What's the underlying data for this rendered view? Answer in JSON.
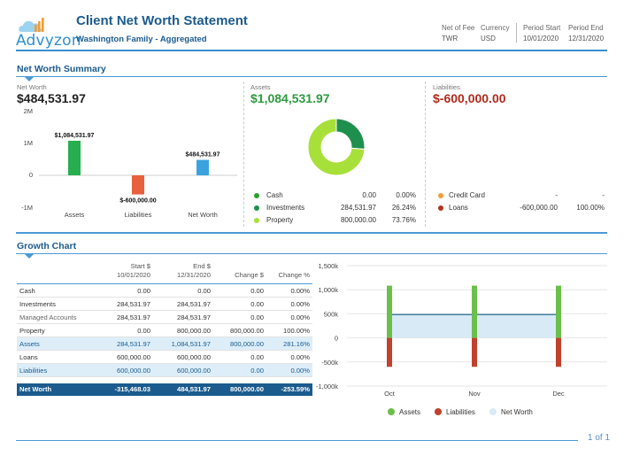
{
  "header": {
    "logo_text": "Advyzon",
    "title": "Client Net Worth Statement",
    "subtitle": "Washington Family - Aggregated",
    "net_of_fee_label": "Net of Fee",
    "net_of_fee_value": "TWR",
    "currency_label": "Currency",
    "currency_value": "USD",
    "period_start_label": "Period Start",
    "period_start_value": "10/01/2020",
    "period_end_label": "Period End",
    "period_end_value": "12/31/2020"
  },
  "summary": {
    "section_title": "Net Worth Summary",
    "net_worth_label": "Net Worth",
    "net_worth_value": "$484,531.97",
    "assets_label": "Assets",
    "assets_value": "$1,084,531.97",
    "liabilities_label": "Liabilities",
    "liabilities_value": "$-600,000.00",
    "assets_rows": [
      {
        "name": "Cash",
        "value": "0.00",
        "pct": "0.00%",
        "color": "#2ca02c"
      },
      {
        "name": "Investments",
        "value": "284,531.97",
        "pct": "26.24%",
        "color": "#1f8f4e"
      },
      {
        "name": "Property",
        "value": "800,000.00",
        "pct": "73.76%",
        "color": "#a8e03a"
      }
    ],
    "liability_rows": [
      {
        "name": "Credit Card",
        "value": "-",
        "pct": "-",
        "color": "#f39c34"
      },
      {
        "name": "Loans",
        "value": "-600,000.00",
        "pct": "100.00%",
        "color": "#b5321e"
      }
    ]
  },
  "chart_data": [
    {
      "type": "bar",
      "title": "Net Worth Summary",
      "categories": [
        "Assets",
        "Liabilities",
        "Net Worth"
      ],
      "values": [
        1084531.97,
        -600000.0,
        484531.97
      ],
      "data_labels": [
        "$1,084,531.97",
        "$-600,000.00",
        "$484,531.97"
      ],
      "colors": [
        "#27ae4f",
        "#e8603c",
        "#3aa3dd"
      ],
      "yticks": [
        "2M",
        "1M",
        "0",
        "-1M"
      ],
      "ylim": [
        -1000000,
        2000000
      ]
    },
    {
      "type": "pie",
      "title": "Assets",
      "labels": [
        "Cash",
        "Investments",
        "Property"
      ],
      "values": [
        0.0,
        26.24,
        73.76
      ],
      "colors": [
        "#2ca02c",
        "#1f8f4e",
        "#a8e03a"
      ]
    },
    {
      "type": "bar",
      "title": "Growth Chart",
      "categories": [
        "Oct",
        "Nov",
        "Dec"
      ],
      "series": [
        {
          "name": "Assets",
          "values": [
            1084531.97,
            1084531.97,
            1084531.97
          ],
          "color": "#6cbf4a"
        },
        {
          "name": "Liabilities",
          "values": [
            -600000,
            -600000,
            -600000
          ],
          "color": "#c0412c"
        },
        {
          "name": "Net Worth",
          "values": [
            484531.97,
            484531.97,
            484531.97
          ],
          "color": "#d7eaf6"
        }
      ],
      "yticks": [
        "1,500k",
        "1,000k",
        "500k",
        "0",
        "-500k",
        "-1,000k"
      ],
      "ylim": [
        -1000000,
        1500000
      ]
    }
  ],
  "growth": {
    "section_title": "Growth Chart",
    "col_start": "Start $",
    "col_start_date": "10/01/2020",
    "col_end": "End $",
    "col_end_date": "12/31/2020",
    "col_change": "Change $",
    "col_change_pct": "Change %",
    "rows": [
      {
        "name": "Cash",
        "start": "0.00",
        "end": "0.00",
        "change": "0.00",
        "pct": "0.00%"
      },
      {
        "name": "Investments",
        "start": "284,531.97",
        "end": "284,531.97",
        "change": "0.00",
        "pct": "0.00%"
      },
      {
        "name": "Managed Accounts",
        "start": "284,531.97",
        "end": "284,531.97",
        "change": "0.00",
        "pct": "0.00%"
      },
      {
        "name": "Property",
        "start": "0.00",
        "end": "800,000.00",
        "change": "800,000.00",
        "pct": "100.00%"
      },
      {
        "name": "Assets",
        "start": "284,531.97",
        "end": "1,084,531.97",
        "change": "800,000.00",
        "pct": "281.16%"
      },
      {
        "name": "Loans",
        "start": "600,000.00",
        "end": "600,000.00",
        "change": "0.00",
        "pct": "0.00%"
      },
      {
        "name": "Liabilities",
        "start": "600,000.00",
        "end": "600,000.00",
        "change": "0.00",
        "pct": "0.00%"
      }
    ],
    "total": {
      "name": "Net Worth",
      "start": "-315,468.03",
      "end": "484,531.97",
      "change": "800,000.00",
      "pct": "-253.59%"
    },
    "legend": [
      "Assets",
      "Liabilities",
      "Net Worth"
    ]
  },
  "footer": {
    "page": "1 of 1"
  }
}
